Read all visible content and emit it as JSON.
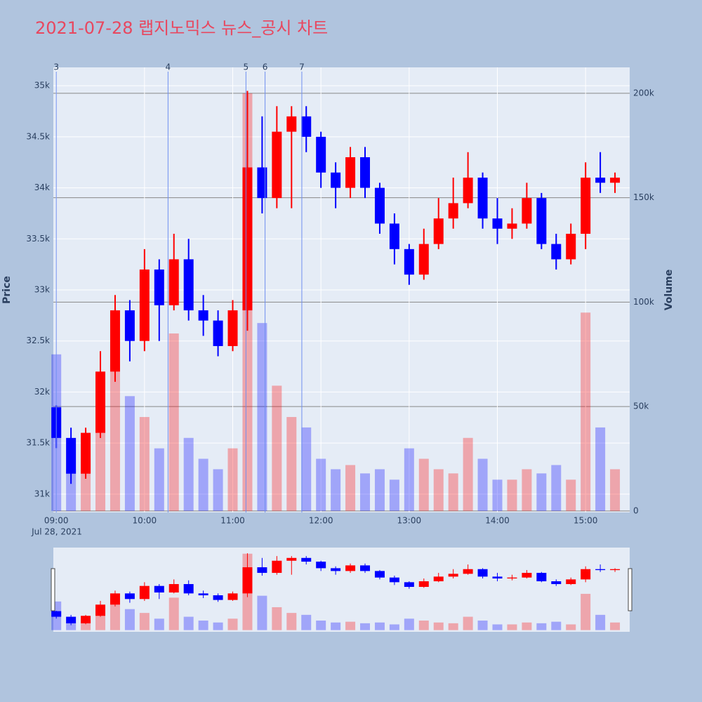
{
  "chart_data": {
    "type": "candlestick",
    "title": "2021-07-28 랩지노믹스 뉴스_공시 차트",
    "y_label": "Price",
    "y2_label": "Volume",
    "x_date_label": "Jul 28, 2021",
    "up_color": "#ff0000",
    "down_color": "#0000ff",
    "xlim": [
      "08:58",
      "15:30"
    ],
    "xticks": [
      "09:00",
      "10:00",
      "11:00",
      "12:00",
      "13:00",
      "14:00",
      "15:00"
    ],
    "ylim": [
      30820,
      35180
    ],
    "yticks": [
      {
        "value": 31000,
        "label": "31k"
      },
      {
        "value": 31500,
        "label": "31.5k"
      },
      {
        "value": 32000,
        "label": "32k"
      },
      {
        "value": 32500,
        "label": "32.5k"
      },
      {
        "value": 33000,
        "label": "33k"
      },
      {
        "value": 33500,
        "label": "33.5k"
      },
      {
        "value": 34000,
        "label": "34k"
      },
      {
        "value": 34500,
        "label": "34.5k"
      },
      {
        "value": 35000,
        "label": "35k"
      }
    ],
    "y2lim": [
      -700,
      212400
    ],
    "y2ticks": [
      0,
      {
        "value": 50000,
        "label": "50k"
      },
      {
        "value": 100000,
        "label": "100k"
      },
      {
        "value": 150000,
        "label": "150k"
      },
      {
        "value": 200000,
        "label": "200k"
      }
    ],
    "annotations": [
      {
        "x": "09:00",
        "text": "3"
      },
      {
        "x": "10:16",
        "text": "4"
      },
      {
        "x": "11:09",
        "text": "5"
      },
      {
        "x": "11:22",
        "text": "6"
      },
      {
        "x": "11:47",
        "text": "7"
      }
    ],
    "x": [
      "09:00",
      "09:10",
      "09:20",
      "09:30",
      "09:40",
      "09:50",
      "10:00",
      "10:10",
      "10:20",
      "10:30",
      "10:40",
      "10:50",
      "11:00",
      "11:10",
      "11:20",
      "11:30",
      "11:40",
      "11:50",
      "12:00",
      "12:10",
      "12:20",
      "12:30",
      "12:40",
      "12:50",
      "13:00",
      "13:10",
      "13:20",
      "13:30",
      "13:40",
      "13:50",
      "14:00",
      "14:10",
      "14:20",
      "14:30",
      "14:40",
      "14:50",
      "15:00",
      "15:10",
      "15:20"
    ],
    "open": [
      31850,
      31550,
      31200,
      31600,
      32200,
      32800,
      32500,
      33200,
      32850,
      33300,
      32800,
      32700,
      32450,
      32800,
      34200,
      33900,
      34550,
      34700,
      34500,
      34150,
      34000,
      34300,
      34000,
      33650,
      33400,
      33150,
      33450,
      33700,
      33850,
      34100,
      33700,
      33600,
      33650,
      33900,
      33450,
      33300,
      33550,
      34100,
      34050
    ],
    "high": [
      31870,
      31650,
      31650,
      32400,
      32950,
      32900,
      33400,
      33300,
      33550,
      33500,
      32950,
      32800,
      32900,
      34950,
      34700,
      34800,
      34800,
      34800,
      34550,
      34250,
      34400,
      34400,
      34050,
      33750,
      33450,
      33600,
      33900,
      34100,
      34350,
      34150,
      33900,
      33800,
      34050,
      33950,
      33550,
      33650,
      34250,
      34350,
      34150
    ],
    "low": [
      31450,
      31100,
      31150,
      31550,
      32100,
      32300,
      32400,
      32500,
      32800,
      32700,
      32550,
      32350,
      32400,
      32600,
      33750,
      33800,
      33800,
      34350,
      34000,
      33800,
      33900,
      33900,
      33550,
      33250,
      33050,
      33100,
      33400,
      33600,
      33800,
      33600,
      33450,
      33500,
      33600,
      33400,
      33200,
      33250,
      33400,
      33950,
      33950
    ],
    "close": [
      31550,
      31200,
      31600,
      32200,
      32800,
      32500,
      33200,
      32850,
      33300,
      32800,
      32700,
      32450,
      32800,
      34200,
      33900,
      34550,
      34700,
      34500,
      34150,
      34000,
      34300,
      34000,
      33650,
      33400,
      33150,
      33450,
      33700,
      33850,
      34100,
      33700,
      33600,
      33650,
      33900,
      33450,
      33300,
      33550,
      34100,
      34050,
      34100
    ],
    "volume": [
      75000,
      20000,
      25000,
      40000,
      70000,
      55000,
      45000,
      30000,
      85000,
      35000,
      25000,
      20000,
      30000,
      200000,
      90000,
      60000,
      45000,
      40000,
      25000,
      20000,
      22000,
      18000,
      20000,
      15000,
      30000,
      25000,
      20000,
      18000,
      35000,
      25000,
      15000,
      15000,
      20000,
      18000,
      22000,
      15000,
      95000,
      40000,
      20000
    ]
  }
}
